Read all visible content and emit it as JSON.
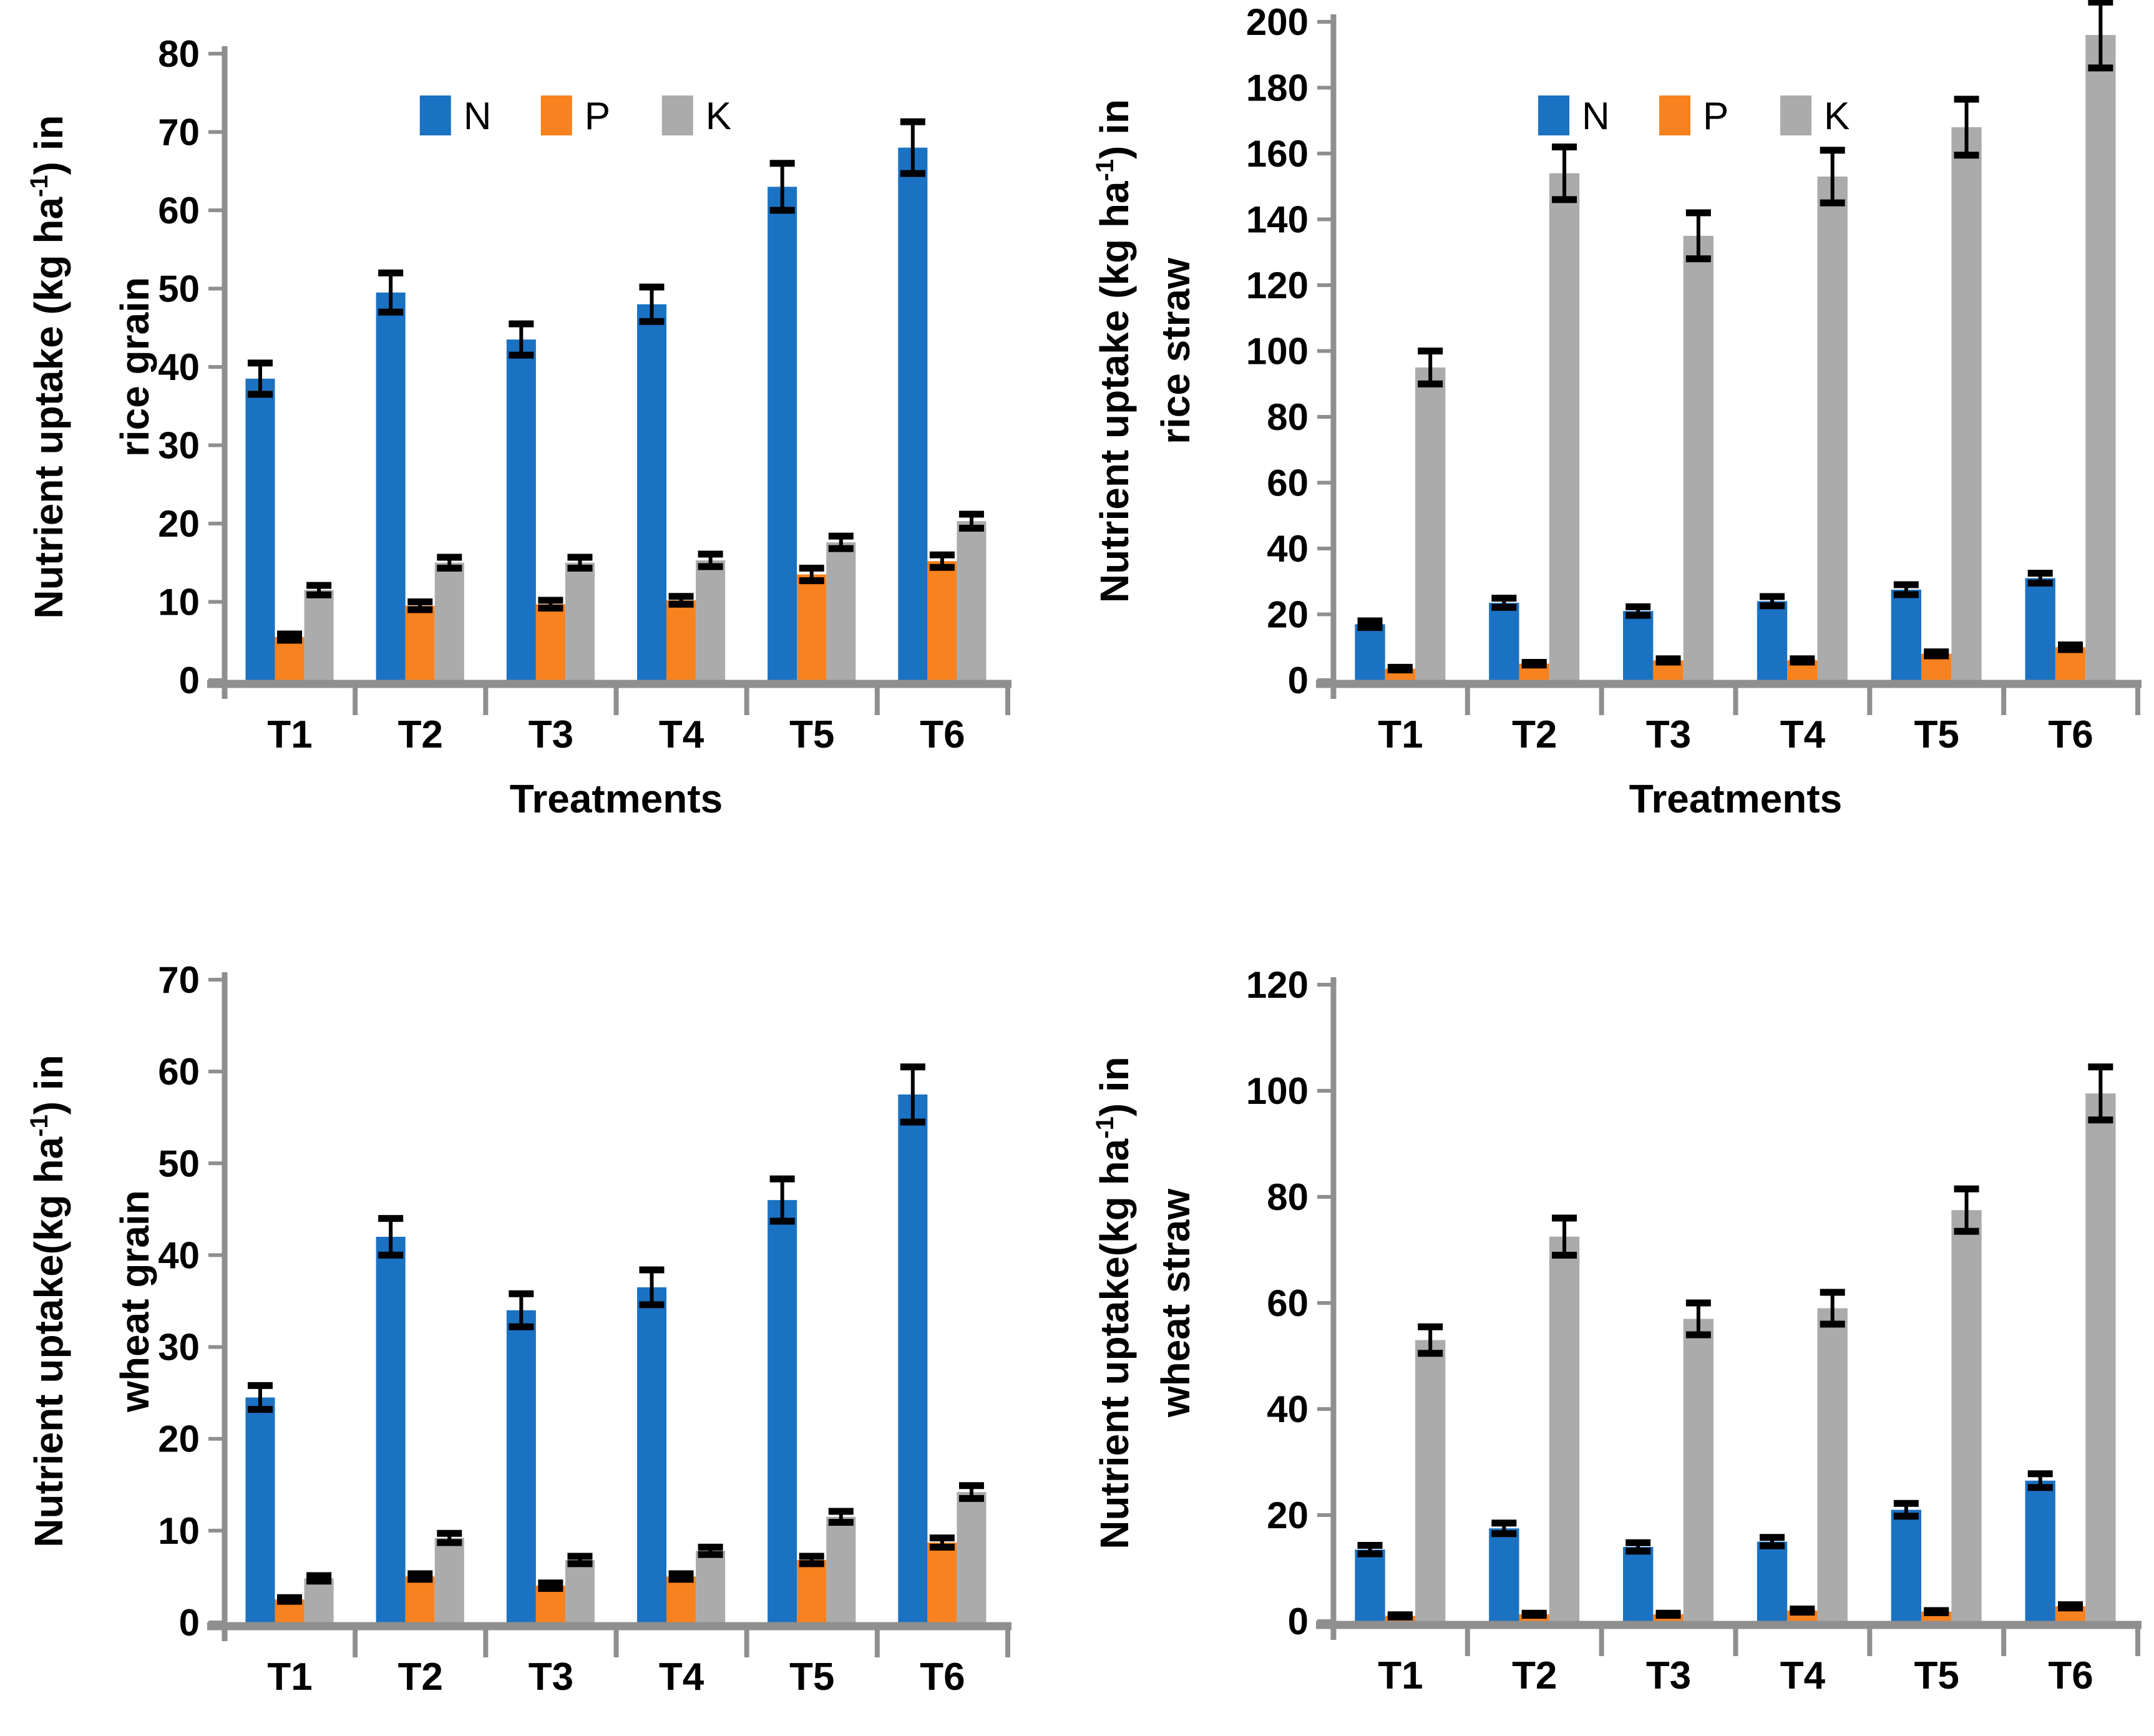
{
  "figure": {
    "description": "Four bar charts of NPK nutrient uptake under treatments T1-T6",
    "x_axis_title": "Treatments",
    "categories": [
      "T1",
      "T2",
      "T3",
      "T4",
      "T5",
      "T6"
    ]
  },
  "colors": {
    "n": "#1B72C2",
    "p": "#F8821F",
    "k": "#ABABAB",
    "axis": "#8F8F8F",
    "error_bar": "#000000",
    "text": "#000000",
    "background": "#FFFFFF"
  },
  "legend": {
    "items": [
      "N",
      "P",
      "K"
    ]
  },
  "chart_data": [
    {
      "type": "bar",
      "name": "rice-grain",
      "ylabel_line1_pre": "Nutrient uptake (kg ha",
      "ylabel_sup": "-1",
      "ylabel_line1_post": ") in",
      "ylabel_line2": "rice grain",
      "xlabel": "Treatments",
      "ylim": [
        0,
        80
      ],
      "ystep": 10,
      "grid": false,
      "legend_visible": true,
      "legend_position": "top",
      "categories": [
        "T1",
        "T2",
        "T3",
        "T4",
        "T5",
        "T6"
      ],
      "series": [
        {
          "name": "N",
          "values": [
            38.5,
            49.5,
            43.5,
            48,
            63,
            68
          ],
          "errors": [
            2,
            2.5,
            2,
            2.2,
            3,
            3.3
          ]
        },
        {
          "name": "P",
          "values": [
            5.5,
            9.5,
            9.7,
            10.2,
            13.5,
            15.2
          ],
          "errors": [
            0.4,
            0.5,
            0.5,
            0.5,
            0.8,
            0.8
          ]
        },
        {
          "name": "K",
          "values": [
            11.5,
            15,
            15,
            15.3,
            17.6,
            20.3
          ],
          "errors": [
            0.6,
            0.7,
            0.7,
            0.8,
            0.8,
            0.9
          ]
        }
      ]
    },
    {
      "type": "bar",
      "name": "rice-straw",
      "ylabel_line1_pre": "Nutrient uptake (kg ha",
      "ylabel_sup": "-1",
      "ylabel_line1_post": ") in",
      "ylabel_line2": "rice straw",
      "xlabel": "Treatments",
      "ylim": [
        0,
        200
      ],
      "ystep": 20,
      "grid": false,
      "legend_visible": true,
      "legend_position": "top",
      "categories": [
        "T1",
        "T2",
        "T3",
        "T4",
        "T5",
        "T6"
      ],
      "series": [
        {
          "name": "N",
          "values": [
            17,
            23.5,
            21,
            24,
            27.5,
            31
          ],
          "errors": [
            1,
            1.4,
            1.3,
            1.4,
            1.5,
            1.5
          ]
        },
        {
          "name": "P",
          "values": [
            3.5,
            5,
            6,
            6,
            8,
            10
          ],
          "errors": [
            0.4,
            0.4,
            0.5,
            0.5,
            0.6,
            0.7
          ]
        },
        {
          "name": "K",
          "values": [
            95,
            154,
            135,
            153,
            168,
            196
          ],
          "errors": [
            5,
            8,
            7,
            8,
            8.5,
            10
          ]
        }
      ]
    },
    {
      "type": "bar",
      "name": "wheat-grain",
      "ylabel_line1_pre": "Nutrient uptake(kg ha",
      "ylabel_sup": "-1",
      "ylabel_line1_post": ") in",
      "ylabel_line2": "wheat grain",
      "xlabel": "",
      "ylim": [
        0,
        70
      ],
      "ystep": 10,
      "grid": false,
      "legend_visible": false,
      "legend_position": "none",
      "categories": [
        "T1",
        "T2",
        "T3",
        "T4",
        "T5",
        "T6"
      ],
      "series": [
        {
          "name": "N",
          "values": [
            24.5,
            42,
            34,
            36.5,
            46,
            57.5
          ],
          "errors": [
            1.3,
            2,
            1.8,
            1.9,
            2.3,
            3
          ]
        },
        {
          "name": "P",
          "values": [
            2.5,
            5,
            4,
            5,
            6.8,
            8.7
          ],
          "errors": [
            0.2,
            0.3,
            0.3,
            0.3,
            0.4,
            0.5
          ]
        },
        {
          "name": "K",
          "values": [
            4.8,
            9.2,
            6.8,
            7.8,
            11.5,
            14.2
          ],
          "errors": [
            0.3,
            0.5,
            0.4,
            0.4,
            0.6,
            0.7
          ]
        }
      ]
    },
    {
      "type": "bar",
      "name": "wheat-straw",
      "ylabel_line1_pre": "Nutrient uptake(kg ha",
      "ylabel_sup": "-1",
      "ylabel_line1_post": ") in",
      "ylabel_line2": "wheat  straw",
      "xlabel": "",
      "ylim": [
        0,
        120
      ],
      "ystep": 20,
      "grid": false,
      "legend_visible": false,
      "legend_position": "none",
      "categories": [
        "T1",
        "T2",
        "T3",
        "T4",
        "T5",
        "T6"
      ],
      "series": [
        {
          "name": "N",
          "values": [
            13.5,
            17.5,
            14,
            15,
            21,
            26.5
          ],
          "errors": [
            0.8,
            1,
            0.8,
            0.8,
            1.2,
            1.3
          ]
        },
        {
          "name": "P",
          "values": [
            1,
            1.3,
            1.3,
            2,
            1.8,
            2.8
          ],
          "errors": [
            0.2,
            0.2,
            0.2,
            0.3,
            0.2,
            0.3
          ]
        },
        {
          "name": "K",
          "values": [
            53,
            72.5,
            57,
            59,
            77.5,
            99.5
          ],
          "errors": [
            2.5,
            3.5,
            3,
            3,
            4,
            5
          ]
        }
      ]
    }
  ]
}
